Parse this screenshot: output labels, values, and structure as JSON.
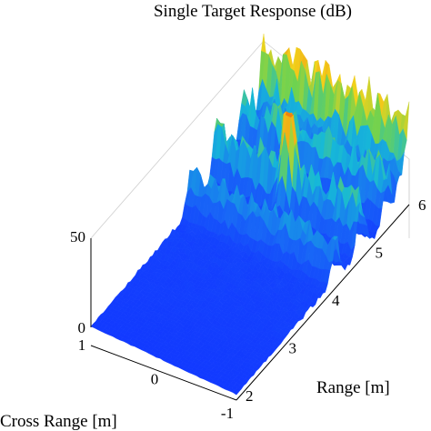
{
  "chart_data": {
    "type": "surface",
    "title": "Single Target Response (dB)",
    "xlabel": "Range [m]",
    "ylabel": "Cross Range [m]",
    "zlabel": "",
    "x_ticks": [
      "2",
      "3",
      "4",
      "5",
      "6"
    ],
    "y_ticks": [
      "1",
      "0",
      "-1"
    ],
    "z_ticks": [
      "0",
      "50"
    ],
    "xlim": [
      2,
      6
    ],
    "ylim": [
      -1,
      1
    ],
    "zlim": [
      0,
      60
    ],
    "colormap": "jet",
    "grid": false,
    "peak": {
      "range": 4.9,
      "cross_range": 0.0,
      "value": 58
    },
    "clutter_rows": [
      {
        "range": 4.3,
        "level": 28
      },
      {
        "range": 4.9,
        "level": 38
      },
      {
        "range": 5.5,
        "level": 40
      },
      {
        "range": 6.0,
        "level": 42
      }
    ]
  }
}
